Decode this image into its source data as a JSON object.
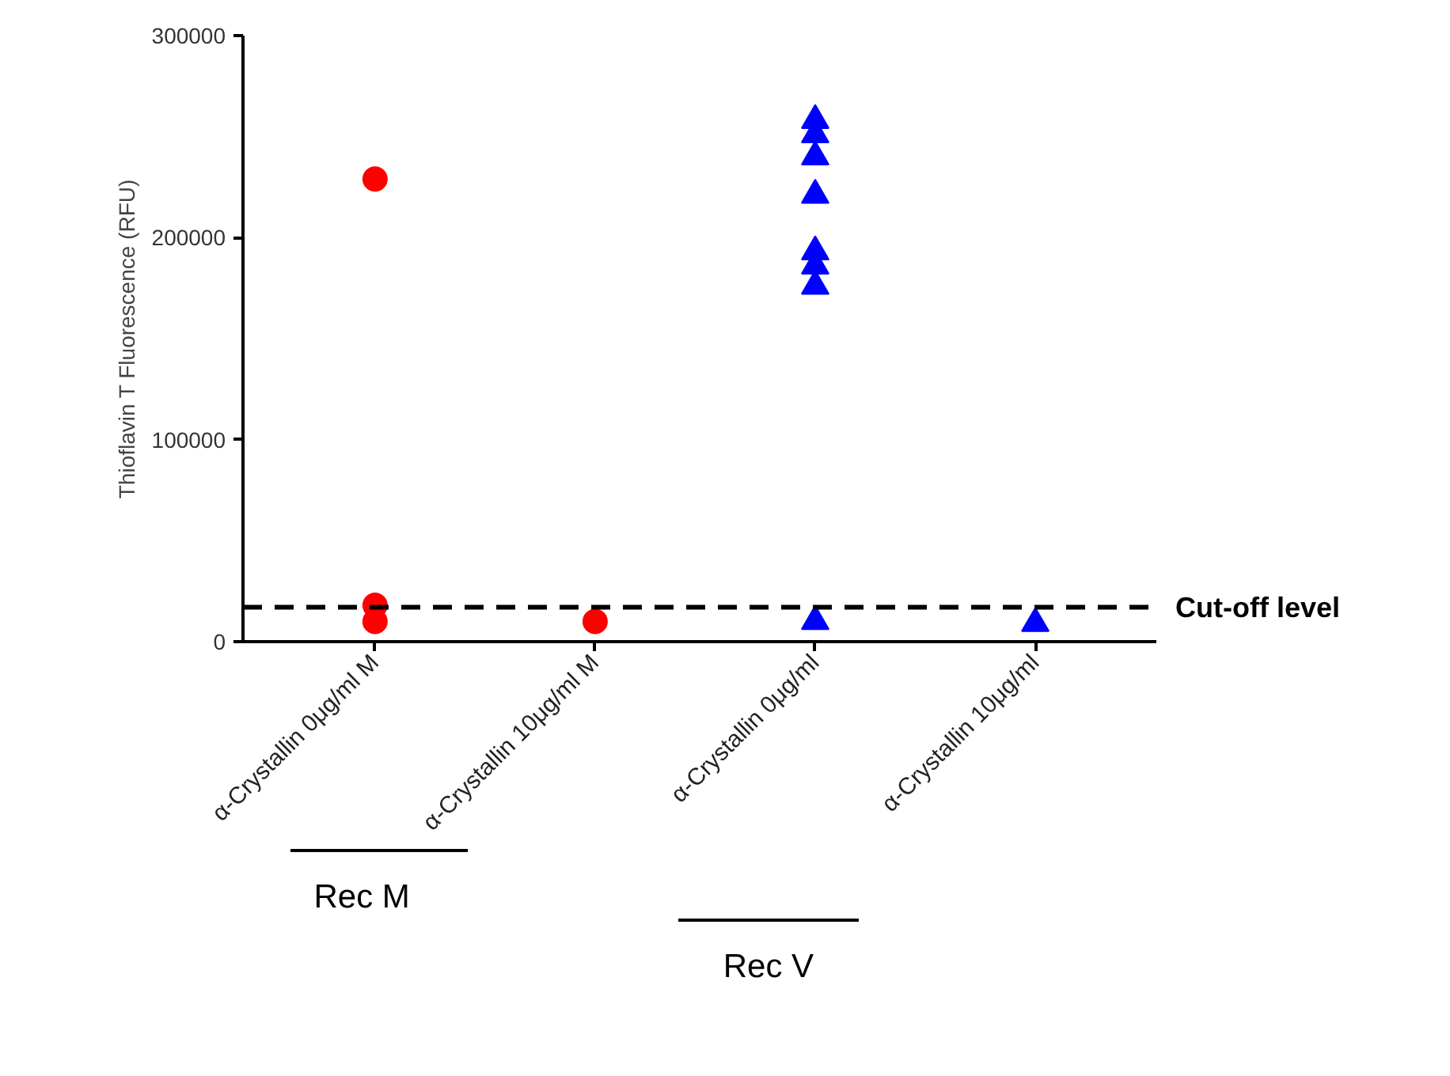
{
  "chart_data": {
    "type": "scatter",
    "ylabel": "Thioflavin T Fluorescence (RFU)",
    "categories": [
      "α-Crystallin 0μg/ml M",
      "α-Crystallin 10μg/ml M",
      "α-Crystallin 0μg/ml",
      "α-Crystallin 10μg/ml"
    ],
    "ylim": [
      0,
      300000
    ],
    "yticks": [
      0,
      100000,
      200000,
      300000
    ],
    "grid": false,
    "series": [
      {
        "color": "#ff0000",
        "marker": "circle",
        "x": [
          "α-Crystallin 0μg/ml M",
          "α-Crystallin 0μg/ml M",
          "α-Crystallin 0μg/ml M"
        ],
        "values": [
          229000,
          18000,
          10000
        ]
      },
      {
        "color": "#ff0000",
        "marker": "circle",
        "x": [
          "α-Crystallin 10μg/ml M"
        ],
        "values": [
          10000
        ]
      },
      {
        "color": "#0000ff",
        "marker": "triangle",
        "x": [
          "α-Crystallin 0μg/ml",
          "α-Crystallin 0μg/ml",
          "α-Crystallin 0μg/ml",
          "α-Crystallin 0μg/ml",
          "α-Crystallin 0μg/ml",
          "α-Crystallin 0μg/ml",
          "α-Crystallin 0μg/ml",
          "α-Crystallin 0μg/ml"
        ],
        "values": [
          251000,
          258000,
          240000,
          221000,
          193000,
          186000,
          176000,
          10000
        ]
      },
      {
        "color": "#0000ff",
        "marker": "triangle",
        "x": [
          "α-Crystallin 10μg/ml"
        ],
        "values": [
          9000
        ]
      }
    ],
    "ref_lines": [
      {
        "axis": "y",
        "value": 17000,
        "label": "Cut-off level",
        "color": "#000000",
        "line_style": "dashed"
      }
    ],
    "annotations": [
      "Rec M",
      "Rec V"
    ]
  }
}
